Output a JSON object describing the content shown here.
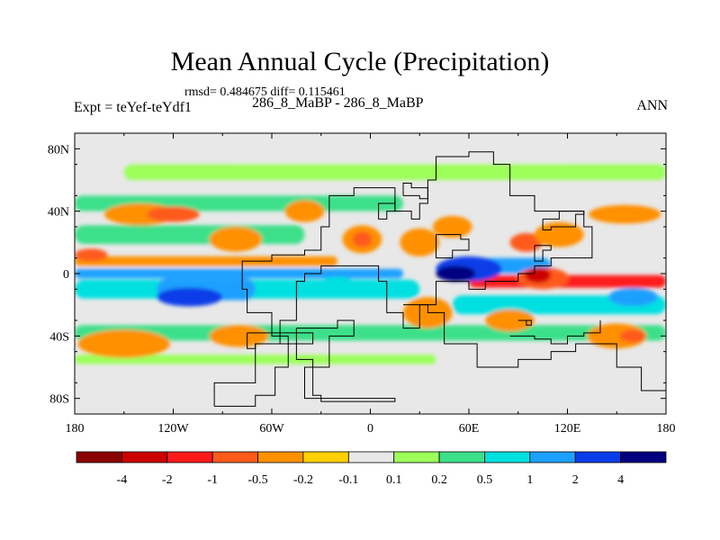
{
  "chart_data": {
    "type": "heatmap",
    "title": "Mean Annual Cycle (Precipitation)",
    "stats": "rmsd= 0.484675 diff= 0.115461",
    "subtitle": "286_8_MaBP - 286_8_MaBP",
    "left_label": "Expt = teYef-teYdf1",
    "right_label": "ANN",
    "x_axis": {
      "range": [
        -180,
        180
      ],
      "ticks": [
        -180,
        -120,
        -60,
        0,
        60,
        120,
        180
      ],
      "tick_labels": [
        "180",
        "120W",
        "60W",
        "0",
        "60E",
        "120E",
        "180"
      ]
    },
    "y_axis": {
      "range": [
        -90,
        90
      ],
      "ticks": [
        80,
        40,
        0,
        -40,
        -80
      ],
      "tick_labels": [
        "80N",
        "40N",
        "0",
        "40S",
        "80S"
      ]
    },
    "colorbar": {
      "labels": [
        "-4",
        "-2",
        "-1",
        "-0.5",
        "-0.2",
        "-0.1",
        "0.1",
        "0.2",
        "0.5",
        "1",
        "2",
        "4"
      ],
      "colors": [
        "#8b0000",
        "#cd0000",
        "#ff1a1a",
        "#ff5a1a",
        "#ff9000",
        "#ffd000",
        "#e8e8e8",
        "#9cff5a",
        "#3ce08a",
        "#00e0e0",
        "#1ea0ff",
        "#0a3ce8",
        "#000080"
      ]
    },
    "background_color": "#e8e8e8",
    "bands": [
      {
        "lat": 0,
        "lon_start": -180,
        "lon_end": 20,
        "half_width": 3,
        "color_index": 10
      },
      {
        "lat": -10,
        "lon_start": -180,
        "lon_end": 30,
        "half_width": 6,
        "color_index": 9
      },
      {
        "lat": -10,
        "lon_start": -130,
        "lon_end": -70,
        "half_width": 7,
        "color_index": 10
      },
      {
        "lat": 8,
        "lon_start": -180,
        "lon_end": -20,
        "half_width": 3,
        "color_index": 4
      },
      {
        "lat": 25,
        "lon_start": -180,
        "lon_end": -40,
        "half_width": 6,
        "color_index": 8
      },
      {
        "lat": 45,
        "lon_start": -180,
        "lon_end": 20,
        "half_width": 5,
        "color_index": 8
      },
      {
        "lat": 5,
        "lon_start": 50,
        "lon_end": 110,
        "half_width": 5,
        "color_index": 10
      },
      {
        "lat": -5,
        "lon_start": 60,
        "lon_end": 180,
        "half_width": 4,
        "color_index": 2
      },
      {
        "lat": -20,
        "lon_start": 50,
        "lon_end": 180,
        "half_width": 6,
        "color_index": 9
      },
      {
        "lat": -38,
        "lon_start": -180,
        "lon_end": 180,
        "half_width": 5,
        "color_index": 8
      },
      {
        "lat": -55,
        "lon_start": -180,
        "lon_end": 40,
        "half_width": 3,
        "color_index": 7
      },
      {
        "lat": 65,
        "lon_start": -150,
        "lon_end": 180,
        "half_width": 5,
        "color_index": 7
      }
    ],
    "blobs": [
      {
        "lon": -140,
        "lat": 38,
        "rx": 22,
        "ry": 7,
        "color_index": 4
      },
      {
        "lon": -120,
        "lat": 38,
        "rx": 16,
        "ry": 5,
        "color_index": 3
      },
      {
        "lon": -82,
        "lat": 22,
        "rx": 16,
        "ry": 8,
        "color_index": 4
      },
      {
        "lon": -170,
        "lat": 12,
        "rx": 10,
        "ry": 4,
        "color_index": 3
      },
      {
        "lon": -150,
        "lat": -45,
        "rx": 28,
        "ry": 9,
        "color_index": 4
      },
      {
        "lon": -80,
        "lat": -40,
        "rx": 18,
        "ry": 7,
        "color_index": 4
      },
      {
        "lon": -40,
        "lat": 40,
        "rx": 12,
        "ry": 7,
        "color_index": 4
      },
      {
        "lon": -5,
        "lat": 22,
        "rx": 12,
        "ry": 9,
        "color_index": 4
      },
      {
        "lon": -5,
        "lat": 22,
        "rx": 6,
        "ry": 5,
        "color_index": 3
      },
      {
        "lon": 30,
        "lat": 20,
        "rx": 12,
        "ry": 9,
        "color_index": 4
      },
      {
        "lon": 50,
        "lat": 30,
        "rx": 12,
        "ry": 7,
        "color_index": 4
      },
      {
        "lon": 95,
        "lat": 20,
        "rx": 10,
        "ry": 6,
        "color_index": 3
      },
      {
        "lon": 115,
        "lat": 25,
        "rx": 15,
        "ry": 8,
        "color_index": 4
      },
      {
        "lon": 155,
        "lat": 38,
        "rx": 22,
        "ry": 6,
        "color_index": 4
      },
      {
        "lon": 60,
        "lat": 3,
        "rx": 20,
        "ry": 8,
        "color_index": 11
      },
      {
        "lon": 52,
        "lat": 0,
        "rx": 12,
        "ry": 5,
        "color_index": 12
      },
      {
        "lon": 105,
        "lat": -3,
        "rx": 16,
        "ry": 7,
        "color_index": 3
      },
      {
        "lon": 102,
        "lat": -1,
        "rx": 8,
        "ry": 5,
        "color_index": 1
      },
      {
        "lon": 35,
        "lat": -25,
        "rx": 15,
        "ry": 10,
        "color_index": 4
      },
      {
        "lon": 85,
        "lat": -30,
        "rx": 15,
        "ry": 7,
        "color_index": 4
      },
      {
        "lon": 150,
        "lat": -40,
        "rx": 18,
        "ry": 8,
        "color_index": 4
      },
      {
        "lon": 160,
        "lat": -40,
        "rx": 8,
        "ry": 4,
        "color_index": 3
      },
      {
        "lon": -20,
        "lat": -8,
        "rx": 12,
        "ry": 6,
        "color_index": 9
      },
      {
        "lon": 160,
        "lat": -15,
        "rx": 15,
        "ry": 6,
        "color_index": 10
      },
      {
        "lon": -110,
        "lat": -15,
        "rx": 20,
        "ry": 6,
        "color_index": 11
      }
    ],
    "outlines": [
      [
        [
          -95,
          -85
        ],
        [
          -70,
          -78
        ],
        [
          -58,
          -60
        ],
        [
          -50,
          -40
        ],
        [
          -60,
          -25
        ],
        [
          -75,
          -10
        ],
        [
          -78,
          8
        ],
        [
          -60,
          12
        ],
        [
          -40,
          15
        ],
        [
          -30,
          30
        ],
        [
          -25,
          50
        ],
        [
          -10,
          55
        ],
        [
          5,
          55
        ],
        [
          15,
          40
        ],
        [
          25,
          35
        ],
        [
          30,
          45
        ],
        [
          35,
          60
        ],
        [
          40,
          75
        ],
        [
          60,
          78
        ],
        [
          75,
          70
        ],
        [
          85,
          50
        ],
        [
          100,
          40
        ],
        [
          130,
          30
        ],
        [
          135,
          10
        ],
        [
          110,
          5
        ],
        [
          100,
          0
        ],
        [
          90,
          -5
        ],
        [
          70,
          -10
        ],
        [
          60,
          -5
        ],
        [
          40,
          -20
        ],
        [
          30,
          -35
        ],
        [
          20,
          -25
        ],
        [
          10,
          -5
        ],
        [
          5,
          5
        ],
        [
          -5,
          5
        ],
        [
          -30,
          0
        ],
        [
          -40,
          -5
        ],
        [
          -45,
          -30
        ],
        [
          -55,
          -45
        ],
        [
          -70,
          -70
        ],
        [
          -95,
          -85
        ]
      ],
      [
        [
          -45,
          -35
        ],
        [
          -20,
          -30
        ],
        [
          -10,
          -40
        ],
        [
          -25,
          -60
        ],
        [
          -40,
          -80
        ],
        [
          15,
          -82
        ],
        [
          -30,
          -78
        ],
        [
          -35,
          -55
        ],
        [
          -45,
          -35
        ]
      ],
      [
        [
          -75,
          -38
        ],
        [
          -40,
          -38
        ],
        [
          -35,
          -45
        ],
        [
          -70,
          -48
        ],
        [
          -75,
          -38
        ]
      ],
      [
        [
          20,
          -20
        ],
        [
          35,
          -25
        ],
        [
          45,
          -45
        ],
        [
          65,
          -60
        ],
        [
          90,
          -55
        ],
        [
          110,
          -50
        ],
        [
          125,
          -45
        ],
        [
          150,
          -60
        ],
        [
          165,
          -75
        ],
        [
          180,
          -78
        ]
      ],
      [
        [
          85,
          -40
        ],
        [
          100,
          -42
        ],
        [
          110,
          -45
        ],
        [
          120,
          -40
        ],
        [
          130,
          -38
        ],
        [
          140,
          -30
        ]
      ],
      [
        [
          105,
          35
        ],
        [
          115,
          40
        ],
        [
          130,
          38
        ],
        [
          125,
          30
        ],
        [
          110,
          28
        ],
        [
          105,
          35
        ]
      ],
      [
        [
          20,
          50
        ],
        [
          30,
          48
        ],
        [
          35,
          55
        ],
        [
          25,
          58
        ],
        [
          20,
          50
        ]
      ],
      [
        [
          15,
          40
        ],
        [
          10,
          35
        ],
        [
          5,
          45
        ],
        [
          15,
          48
        ],
        [
          15,
          40
        ]
      ],
      [
        [
          40,
          25
        ],
        [
          55,
          22
        ],
        [
          60,
          15
        ],
        [
          50,
          10
        ],
        [
          40,
          20
        ],
        [
          40,
          25
        ]
      ],
      [
        [
          100,
          18
        ],
        [
          110,
          15
        ],
        [
          105,
          8
        ],
        [
          100,
          18
        ]
      ],
      [
        [
          90,
          -30
        ],
        [
          95,
          -33
        ],
        [
          98,
          -30
        ],
        [
          90,
          -30
        ]
      ]
    ]
  }
}
